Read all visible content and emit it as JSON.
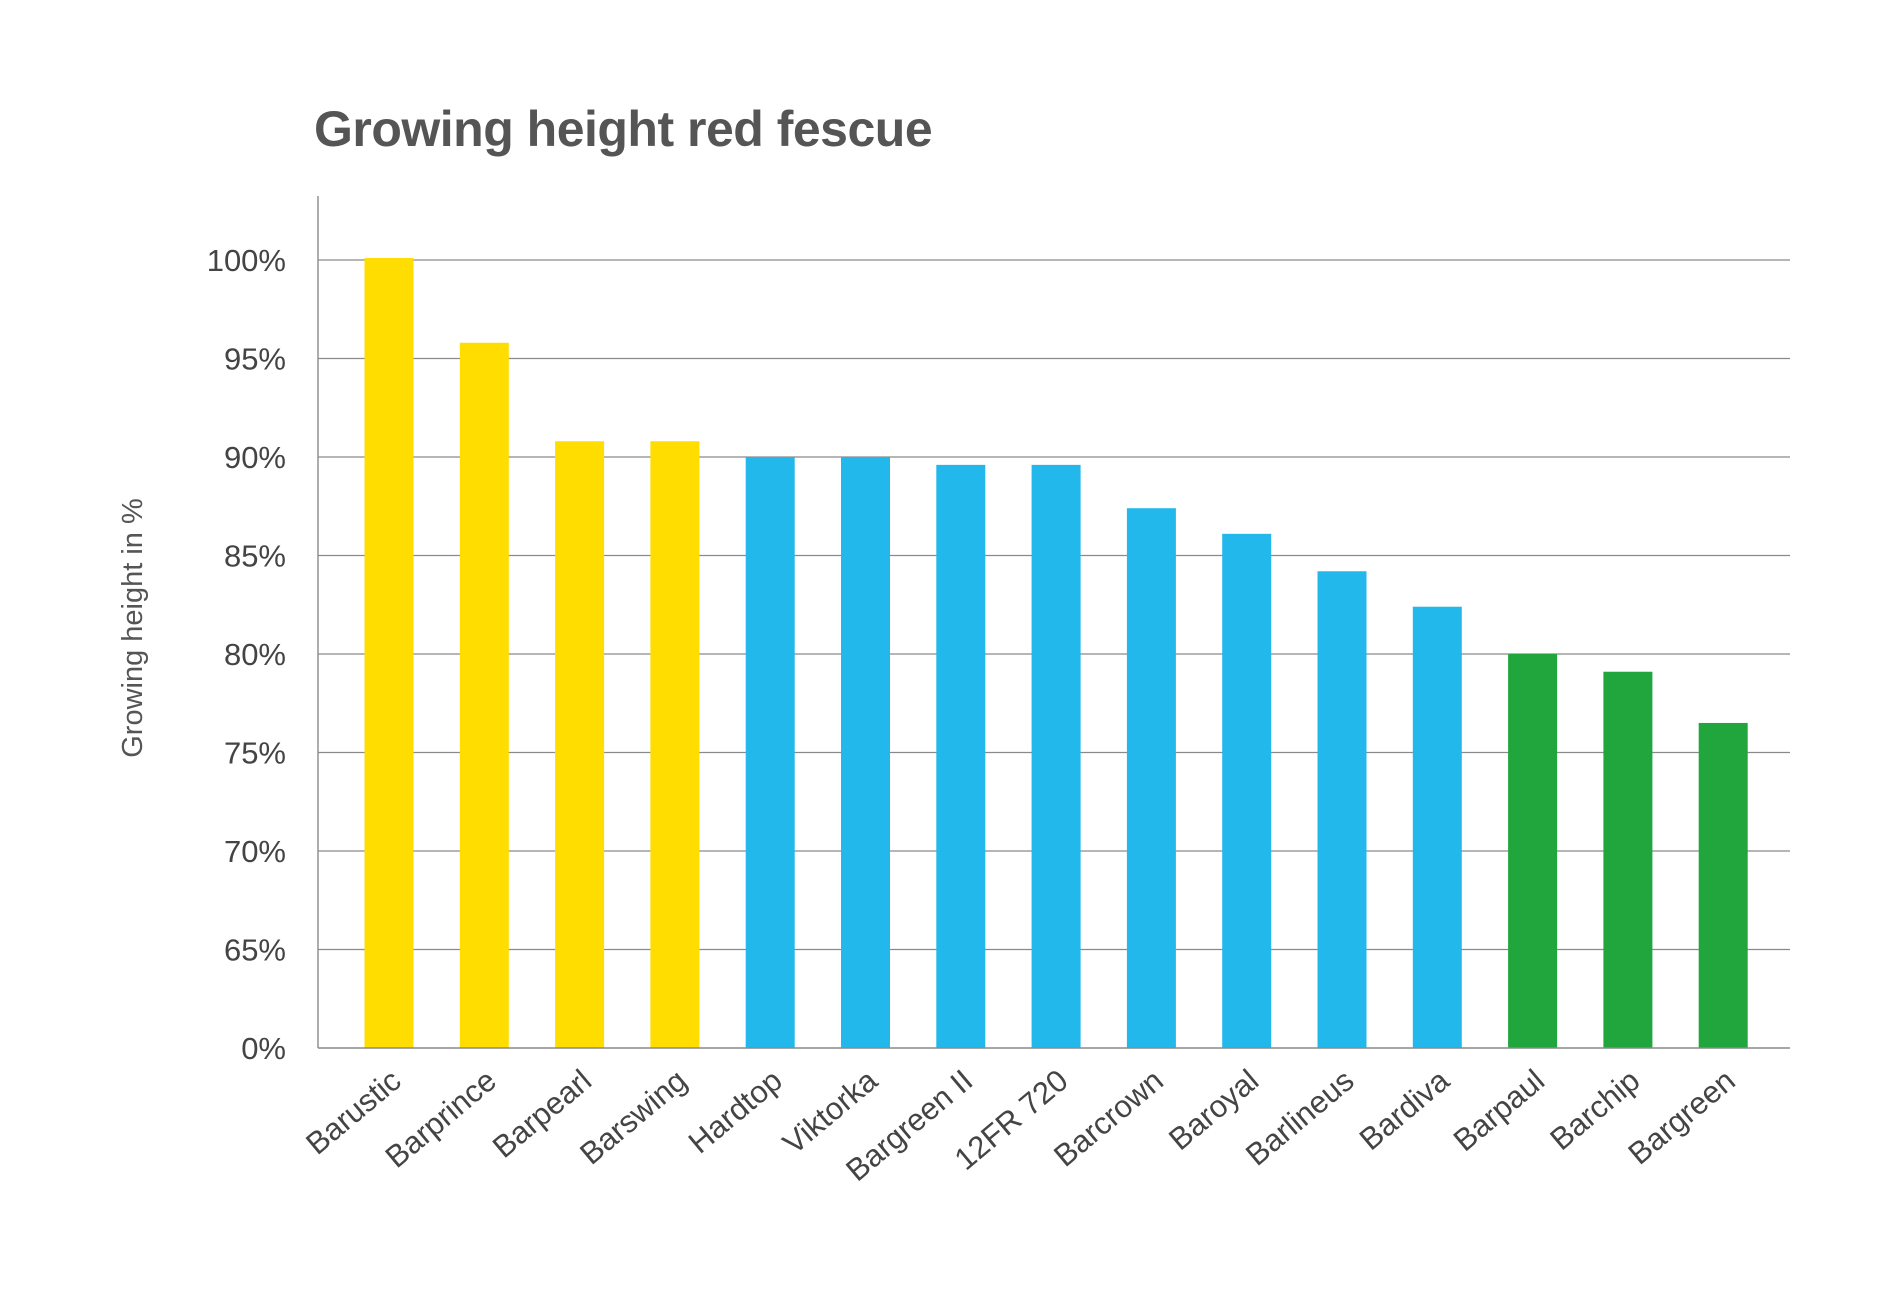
{
  "chart_data": {
    "type": "bar",
    "title": "Growing height red fescue",
    "xlabel": "",
    "ylabel": "Growing height in %",
    "y_ticks": [
      "0%",
      "65%",
      "70%",
      "75%",
      "80%",
      "85%",
      "90%",
      "95%",
      "100%"
    ],
    "y_tick_values": [
      0,
      65,
      70,
      75,
      80,
      85,
      90,
      95,
      100
    ],
    "axis_break": "0% to 65%",
    "categories": [
      "Barustic",
      "Barprince",
      "Barpearl",
      "Barswing",
      "Hardtop",
      "Viktorka",
      "Bargreen II",
      "12FR 720",
      "Barcrown",
      "Baroyal",
      "Barlineus",
      "Bardiva",
      "Barpaul",
      "Barchip",
      "Bargreen"
    ],
    "values": [
      100.1,
      95.8,
      90.8,
      90.8,
      90,
      90,
      89.6,
      89.6,
      87.4,
      86.1,
      84.2,
      82.4,
      80,
      79.1,
      76.5
    ],
    "bar_colors": [
      "#FFDD00",
      "#FFDD00",
      "#FFDD00",
      "#FFDD00",
      "#22B8EB",
      "#22B8EB",
      "#22B8EB",
      "#22B8EB",
      "#22B8EB",
      "#22B8EB",
      "#22B8EB",
      "#22B8EB",
      "#21A63D",
      "#21A63D",
      "#21A63D"
    ],
    "grid": true,
    "legend": "none"
  },
  "colors": {
    "yellow": "#FFDD00",
    "blue": "#22B8EB",
    "green": "#21A63D",
    "gridline": "#8a8a8a",
    "text": "#444444"
  }
}
